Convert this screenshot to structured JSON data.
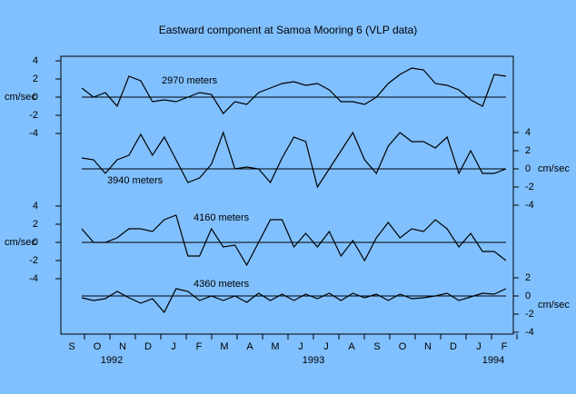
{
  "title": "Eastward component at Samoa Mooring 6 (VLP data)",
  "x_axis": {
    "categories": [
      "S",
      "O",
      "N",
      "D",
      "J",
      "F",
      "M",
      "A",
      "M",
      "J",
      "J",
      "A",
      "S",
      "O",
      "N",
      "D",
      "J",
      "F"
    ],
    "years": [
      "1992",
      "1993",
      "1994"
    ]
  },
  "chart_data": [
    {
      "type": "line",
      "name": "2970 meters",
      "unit": "cm/sec",
      "axis_side": "left",
      "color": "#000000",
      "ylim": [
        -4,
        4
      ],
      "yticks": [
        4,
        2,
        0,
        -2,
        -4
      ],
      "values": [
        1,
        0,
        0.5,
        -1,
        2.3,
        1.8,
        -0.5,
        -0.3,
        -0.5,
        0,
        0.5,
        0.3,
        -1.8,
        -0.5,
        -0.8,
        0.5,
        1,
        1.5,
        1.7,
        1.3,
        1.5,
        0.8,
        -0.5,
        -0.5,
        -0.8,
        0,
        1.5,
        2.5,
        3.2,
        3,
        1.5,
        1.3,
        0.8,
        -0.3,
        -1,
        2.5,
        2.3
      ]
    },
    {
      "type": "line",
      "name": "3940 meters",
      "unit": "cm/sec",
      "axis_side": "right",
      "color": "#000000",
      "ylim": [
        -4,
        4
      ],
      "yticks": [
        4,
        2,
        0,
        -2,
        -4
      ],
      "values": [
        1.2,
        1,
        -0.5,
        1,
        1.5,
        3.8,
        1.5,
        3.5,
        1,
        -1.5,
        -1,
        0.5,
        4,
        0,
        0.2,
        0,
        -1.5,
        1.2,
        3.5,
        3,
        -2,
        0,
        2,
        4,
        1,
        -0.5,
        2.5,
        4,
        3,
        3,
        2.3,
        3.5,
        -0.5,
        2,
        -0.5,
        -0.5,
        0
      ]
    },
    {
      "type": "line",
      "name": "4160 meters",
      "unit": "cm/sec",
      "axis_side": "left",
      "color": "#000000",
      "ylim": [
        -4,
        4
      ],
      "yticks": [
        4,
        2,
        0,
        -2,
        -4
      ],
      "values": [
        1.5,
        0,
        0,
        0.5,
        1.5,
        1.5,
        1.2,
        2.5,
        3,
        -1.5,
        -1.5,
        1.5,
        -0.5,
        -0.3,
        -2.5,
        0,
        2.5,
        2.5,
        -0.5,
        1,
        -0.5,
        1.2,
        -1.5,
        0.2,
        -2,
        0.5,
        2.2,
        0.5,
        1.5,
        1.2,
        2.5,
        1.5,
        -0.5,
        1,
        -1,
        -1,
        -2
      ]
    },
    {
      "type": "line",
      "name": "4360 meters",
      "unit": "cm/sec",
      "axis_side": "right",
      "color": "#000000",
      "ylim": [
        -4,
        2
      ],
      "yticks": [
        2,
        0,
        -2,
        -4
      ],
      "values": [
        -0.2,
        -0.5,
        -0.3,
        0.5,
        -0.2,
        -0.8,
        -0.3,
        -1.8,
        0.8,
        0.5,
        -0.5,
        0,
        -0.5,
        0,
        -0.7,
        0.3,
        -0.5,
        0.2,
        -0.5,
        0.2,
        -0.3,
        0.3,
        -0.5,
        0.3,
        -0.2,
        0.2,
        -0.5,
        0.2,
        -0.3,
        -0.2,
        0,
        0.3,
        -0.5,
        -0.1,
        0.3,
        0.2,
        0.8
      ]
    }
  ]
}
